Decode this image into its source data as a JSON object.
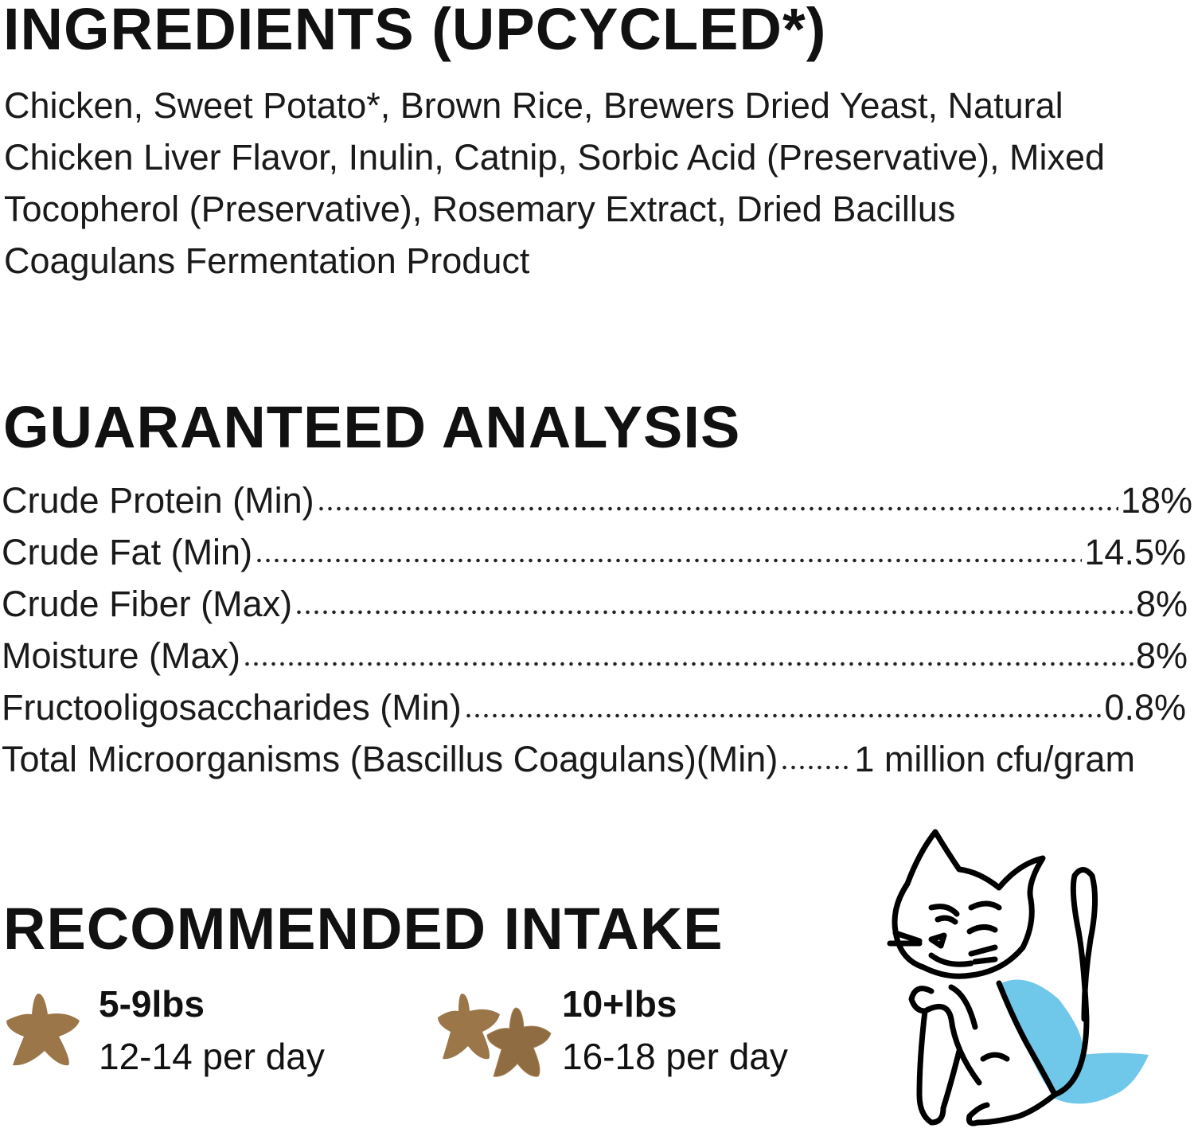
{
  "ingredients": {
    "heading": "INGREDIENTS (UPCYCLED*)",
    "lines": [
      "Chicken, Sweet Potato*, Brown Rice, Brewers Dried Yeast, Natural",
      "Chicken Liver Flavor, Inulin, Catnip, Sorbic Acid (Preservative), Mixed",
      "Tocopherol (Preservative), Rosemary Extract, Dried Bacillus",
      "Coagulans Fermentation Product"
    ]
  },
  "analysis": {
    "heading": "GUARANTEED ANALYSIS",
    "rows": [
      {
        "label": "Crude Protein (Min)",
        "value": "18%"
      },
      {
        "label": "Crude Fat (Min)",
        "value": "14.5%"
      },
      {
        "label": "Crude Fiber (Max)",
        "value": "8%"
      },
      {
        "label": "Moisture (Max)",
        "value": "8%"
      },
      {
        "label": "Fructooligosaccharides (Min)",
        "value": "0.8%"
      },
      {
        "label": "Total Microorganisms (Bascillus Coagulans)(Min)",
        "value": "1 million cfu/gram"
      }
    ]
  },
  "intake": {
    "heading": "RECOMMENDED INTAKE",
    "items": [
      {
        "weight": "5-9lbs",
        "amount": "12-14 per day",
        "icon": "single-treat-star-icon"
      },
      {
        "weight": "10+lbs",
        "amount": "16-18 per day",
        "icon": "double-treat-star-icon"
      }
    ]
  },
  "colors": {
    "treat": "#9a7649",
    "cape": "#6fc7ea",
    "text": "#111111"
  }
}
